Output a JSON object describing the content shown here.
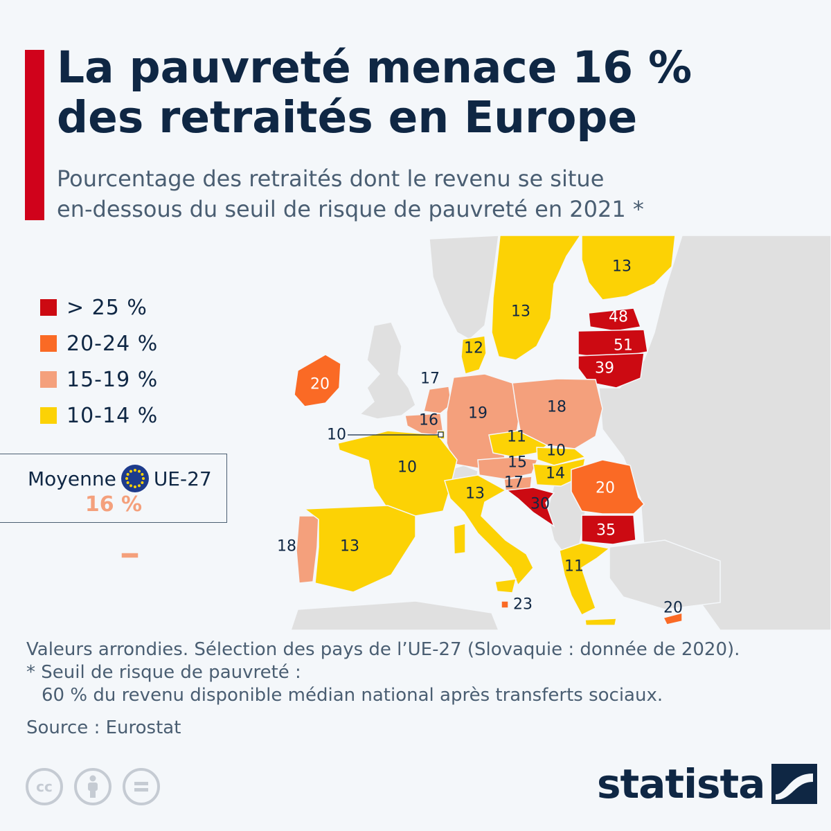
{
  "title": {
    "line1": "La pauvreté menace 16 %",
    "line2": "des retraités en Europe"
  },
  "subtitle": {
    "line1": "Pourcentage des retraités dont le revenu se situe",
    "line2": "en-dessous du seuil de risque de pauvreté en 2021 *"
  },
  "legend": [
    {
      "label": "> 25 %",
      "color": "#cc0a12"
    },
    {
      "label": "20-24 %",
      "color": "#fa6a25"
    },
    {
      "label": "15-19 %",
      "color": "#f4a07c"
    },
    {
      "label": "10-14 %",
      "color": "#fcd205"
    }
  ],
  "average": {
    "label_before": "Moyenne",
    "label_after": "UE-27",
    "value": "16 %",
    "icon": "eu-flag-icon"
  },
  "countries": {
    "finland": "13",
    "sweden": "13",
    "denmark": "12",
    "estonia": "48",
    "latvia": "51",
    "lithuania": "39",
    "ireland": "20",
    "netherlands": "17",
    "belgium": "16",
    "luxembourg": "10",
    "germany": "19",
    "poland": "18",
    "czechia": "11",
    "slovakia": "10",
    "austria": "15",
    "hungary": "14",
    "slovenia": "17",
    "croatia": "30",
    "romania": "20",
    "bulgaria": "35",
    "france": "10",
    "italy": "13",
    "greece": "11",
    "malta": "23",
    "cyprus": "20",
    "portugal": "18",
    "spain": "13"
  },
  "footnotes": {
    "line1": "Valeurs arrondies. Sélection des pays de l’UE-27 (Slovaquie : donnée de 2020).",
    "line2": "* Seuil de risque de pauvreté :",
    "line3": "60 % du revenu disponible médian national après transferts sociaux."
  },
  "source": "Source : Eurostat",
  "brand": "statista",
  "license_icons": [
    "cc-icon",
    "attribution-icon",
    "no-derivatives-icon"
  ]
}
